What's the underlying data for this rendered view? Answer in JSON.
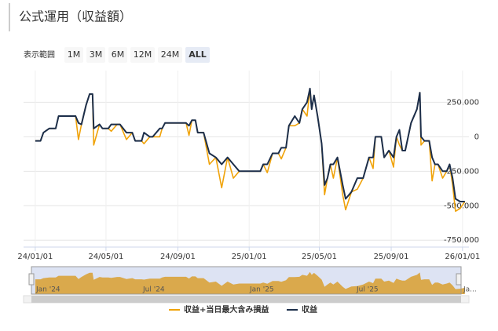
{
  "chart_data": {
    "type": "line",
    "title": "公式運用（収益額）",
    "range_label": "表示範囲",
    "range_buttons": [
      "1M",
      "3M",
      "6M",
      "12M",
      "24M",
      "ALL"
    ],
    "range_selected": 5,
    "x": [
      "24/01/01",
      "24/01/10",
      "24/01/15",
      "24/01/25",
      "24/02/05",
      "24/02/10",
      "24/03/01",
      "24/03/10",
      "24/03/15",
      "24/03/20",
      "24/03/28",
      "24/04/03",
      "24/04/08",
      "24/04/10",
      "24/04/20",
      "24/04/25",
      "24/05/05",
      "24/05/10",
      "24/05/20",
      "24/05/25",
      "24/06/05",
      "24/06/15",
      "24/06/20",
      "24/07/01",
      "24/07/05",
      "24/07/15",
      "24/07/20",
      "24/08/01",
      "24/08/05",
      "24/08/10",
      "24/09/01",
      "24/09/15",
      "24/09/20",
      "24/09/25",
      "24/10/01",
      "24/10/05",
      "24/10/15",
      "24/10/25",
      "24/11/05",
      "24/11/15",
      "24/11/25",
      "24/12/05",
      "24/12/15",
      "25/01/01",
      "25/01/20",
      "25/01/25",
      "25/02/01",
      "25/02/10",
      "25/02/20",
      "25/02/25",
      "25/03/05",
      "25/03/10",
      "25/03/20",
      "25/03/28",
      "25/04/02",
      "25/04/10",
      "25/04/15",
      "25/04/18",
      "25/04/22",
      "25/04/28",
      "25/05/05",
      "25/05/10",
      "25/05/15",
      "25/05/20",
      "25/05/25",
      "25/06/01",
      "25/06/10",
      "25/06/15",
      "25/06/25",
      "25/07/05",
      "25/07/15",
      "25/07/25",
      "25/08/01",
      "25/08/05",
      "25/08/15",
      "25/08/20",
      "25/08/28",
      "25/09/05",
      "25/09/10",
      "25/09/15",
      "25/09/20",
      "25/09/25",
      "25/10/05",
      "25/10/15",
      "25/10/20",
      "25/10/22",
      "25/10/28",
      "25/11/05",
      "25/11/10",
      "25/11/15",
      "25/11/20",
      "25/11/28",
      "25/12/05",
      "25/12/10",
      "25/12/15",
      "25/12/20",
      "25/12/28",
      "26/01/05"
    ],
    "series": [
      {
        "name": "収益+当日最大含み損益",
        "color": "#f0a30a",
        "values": [
          -30000,
          -30000,
          30000,
          60000,
          60000,
          150000,
          150000,
          150000,
          -20000,
          90000,
          230000,
          310000,
          310000,
          -60000,
          90000,
          60000,
          60000,
          40000,
          90000,
          90000,
          -20000,
          30000,
          -30000,
          -30000,
          -50000,
          0,
          0,
          0,
          60000,
          100000,
          100000,
          100000,
          10000,
          120000,
          120000,
          30000,
          30000,
          -200000,
          -150000,
          -370000,
          -150000,
          -300000,
          -250000,
          -250000,
          -250000,
          -200000,
          -260000,
          -120000,
          -120000,
          -160000,
          -80000,
          80000,
          80000,
          100000,
          200000,
          150000,
          350000,
          200000,
          300000,
          150000,
          -50000,
          -420000,
          -300000,
          -200000,
          -300000,
          -150000,
          -420000,
          -530000,
          -400000,
          -380000,
          -300000,
          -150000,
          -230000,
          0,
          0,
          -150000,
          -100000,
          -220000,
          0,
          -60000,
          -100000,
          -100000,
          100000,
          200000,
          320000,
          -60000,
          -30000,
          -30000,
          -320000,
          -200000,
          -200000,
          -300000,
          -250000,
          -200000,
          -350000,
          -540000,
          -520000,
          -470000
        ]
      },
      {
        "name": "収益",
        "color": "#1c2e4a",
        "values": [
          -30000,
          -30000,
          30000,
          60000,
          60000,
          150000,
          150000,
          150000,
          100000,
          90000,
          230000,
          310000,
          310000,
          60000,
          90000,
          60000,
          60000,
          90000,
          90000,
          90000,
          30000,
          30000,
          -30000,
          -30000,
          30000,
          0,
          0,
          60000,
          60000,
          100000,
          100000,
          100000,
          80000,
          120000,
          120000,
          30000,
          30000,
          -120000,
          -150000,
          -200000,
          -150000,
          -200000,
          -250000,
          -250000,
          -250000,
          -200000,
          -200000,
          -120000,
          -120000,
          -80000,
          -80000,
          80000,
          150000,
          100000,
          200000,
          250000,
          350000,
          200000,
          300000,
          150000,
          -50000,
          -350000,
          -300000,
          -200000,
          -200000,
          -150000,
          -350000,
          -450000,
          -400000,
          -300000,
          -300000,
          -150000,
          -150000,
          0,
          0,
          -150000,
          -100000,
          -150000,
          0,
          50000,
          -100000,
          -100000,
          100000,
          200000,
          320000,
          0,
          -30000,
          -30000,
          -150000,
          -200000,
          -200000,
          -250000,
          -250000,
          -200000,
          -300000,
          -450000,
          -470000,
          -470000
        ]
      }
    ],
    "xlim": [
      "23/12/12",
      "26/01/12"
    ],
    "xticks": [
      "24/01/01",
      "24/05/01",
      "24/09/01",
      "25/01/01",
      "25/05/01",
      "25/09/01",
      "26/01/01"
    ],
    "ylim": [
      -800000,
      480000
    ],
    "yticks": [
      {
        "value": 250000,
        "label": "250,000"
      },
      0,
      {
        "value": -250000,
        "label": "-250,000"
      },
      {
        "value": -500000,
        "label": "-500,000"
      },
      {
        "value": -750000,
        "label": "-750,000"
      }
    ],
    "grid": true,
    "navigator_labels": [
      "Jan '24",
      "Jul '24",
      "Jan '25",
      "Jul '25",
      "Ja..."
    ]
  }
}
